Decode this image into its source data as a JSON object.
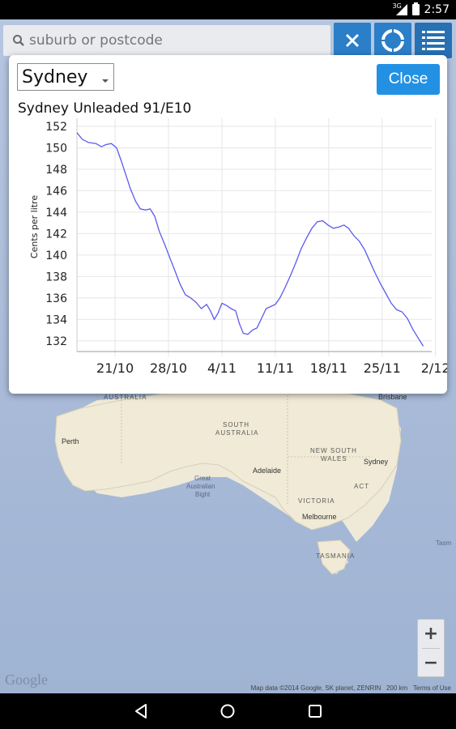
{
  "status_bar": {
    "time": "2:57",
    "network": "3G"
  },
  "search": {
    "placeholder": "suburb or postcode",
    "value": ""
  },
  "dialog": {
    "city_selected": "Sydney",
    "close_label": "Close",
    "chart_title": "Sydney Unleaded 91/E10"
  },
  "chart_data": {
    "type": "line",
    "title": "Sydney Unleaded 91/E10",
    "xlabel": "",
    "ylabel": "Cents per litre",
    "ylim": [
      131,
      152
    ],
    "yticks": [
      152,
      150,
      148,
      146,
      144,
      142,
      140,
      138,
      136,
      134,
      132
    ],
    "xticks": [
      {
        "label": "21/10",
        "day": 5
      },
      {
        "label": "28/10",
        "day": 12
      },
      {
        "label": "4/11",
        "day": 19
      },
      {
        "label": "11/11",
        "day": 26
      },
      {
        "label": "18/11",
        "day": 33
      },
      {
        "label": "25/11",
        "day": 40
      },
      {
        "label": "2/12",
        "day": 47
      }
    ],
    "x_start_label": "16/10",
    "grid": true,
    "series_color": "#5a5af0",
    "series": [
      {
        "name": "",
        "values": [
          [
            0,
            151.4
          ],
          [
            0.7,
            150.8
          ],
          [
            1.5,
            150.5
          ],
          [
            2.5,
            150.4
          ],
          [
            3.2,
            150.1
          ],
          [
            3.8,
            150.3
          ],
          [
            4.5,
            150.4
          ],
          [
            5.2,
            150.0
          ],
          [
            5.8,
            148.8
          ],
          [
            6.4,
            147.5
          ],
          [
            7.0,
            146.2
          ],
          [
            7.7,
            145.0
          ],
          [
            8.3,
            144.3
          ],
          [
            9.0,
            144.2
          ],
          [
            9.6,
            144.3
          ],
          [
            10.2,
            143.6
          ],
          [
            10.8,
            142.2
          ],
          [
            11.5,
            141.0
          ],
          [
            12.2,
            139.7
          ],
          [
            12.8,
            138.6
          ],
          [
            13.5,
            137.3
          ],
          [
            14.2,
            136.3
          ],
          [
            14.9,
            136.0
          ],
          [
            15.6,
            135.6
          ],
          [
            16.3,
            135.0
          ],
          [
            17.0,
            135.4
          ],
          [
            17.5,
            134.8
          ],
          [
            18.0,
            134.0
          ],
          [
            18.5,
            134.6
          ],
          [
            19.0,
            135.5
          ],
          [
            19.6,
            135.3
          ],
          [
            20.2,
            135.0
          ],
          [
            20.8,
            134.8
          ],
          [
            21.3,
            133.6
          ],
          [
            21.8,
            132.7
          ],
          [
            22.4,
            132.6
          ],
          [
            23.0,
            133.0
          ],
          [
            23.6,
            133.2
          ],
          [
            24.2,
            134.1
          ],
          [
            24.8,
            135.0
          ],
          [
            25.4,
            135.2
          ],
          [
            26.0,
            135.4
          ],
          [
            26.6,
            136.0
          ],
          [
            27.3,
            137.0
          ],
          [
            28.0,
            138.1
          ],
          [
            28.7,
            139.3
          ],
          [
            29.4,
            140.6
          ],
          [
            30.1,
            141.6
          ],
          [
            30.8,
            142.5
          ],
          [
            31.5,
            143.1
          ],
          [
            32.2,
            143.2
          ],
          [
            32.9,
            142.8
          ],
          [
            33.6,
            142.5
          ],
          [
            34.3,
            142.6
          ],
          [
            35.0,
            142.8
          ],
          [
            35.6,
            142.5
          ],
          [
            36.3,
            141.8
          ],
          [
            37.0,
            141.3
          ],
          [
            37.7,
            140.5
          ],
          [
            38.4,
            139.4
          ],
          [
            39.1,
            138.3
          ],
          [
            39.8,
            137.3
          ],
          [
            40.5,
            136.4
          ],
          [
            41.2,
            135.5
          ],
          [
            41.9,
            134.9
          ],
          [
            42.6,
            134.7
          ],
          [
            43.3,
            134.1
          ],
          [
            44.0,
            133.1
          ],
          [
            44.7,
            132.3
          ],
          [
            45.4,
            131.5
          ]
        ]
      }
    ]
  },
  "map": {
    "labels": {
      "australia": "AUSTRALIA",
      "south_australia_1": "SOUTH",
      "south_australia_2": "AUSTRALIA",
      "new_south_wales_1": "NEW SOUTH",
      "new_south_wales_2": "WALES",
      "victoria": "VICTORIA",
      "tasmania": "TASMANIA",
      "act": "ACT",
      "great_bight_1": "Great",
      "great_bight_2": "Australian",
      "great_bight_3": "Bight",
      "tasman": "Tasm"
    },
    "cities": {
      "perth": "Perth",
      "adelaide": "Adelaide",
      "melbourne": "Melbourne",
      "sydney": "Sydney",
      "brisbane": "Brisbane"
    },
    "google": "Google",
    "attribution": "Map data ©2014 Google, SK planet, ZENRIN",
    "scale": "200 km",
    "terms": "Terms of Use"
  },
  "zoom": {
    "in": "+",
    "out": "−"
  }
}
